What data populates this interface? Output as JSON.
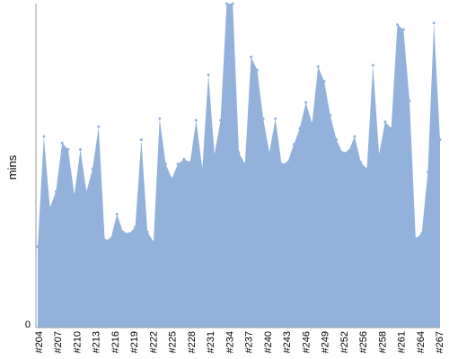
{
  "chart_data": {
    "type": "area",
    "title": "",
    "xlabel": "",
    "ylabel": "mins",
    "y_tick_labels": [
      "0"
    ],
    "ylim": [
      0,
      100
    ],
    "grid": false,
    "legend": "none",
    "series_color": "#92b2dc",
    "axis_color": "#999999",
    "x_tick_labels": [
      "#204",
      "#207",
      "#210",
      "#213",
      "#216",
      "#219",
      "#222",
      "#225",
      "#228",
      "#231",
      "#234",
      "#237",
      "#240",
      "#243",
      "#246",
      "#249",
      "#252",
      "#256",
      "#258",
      "#261",
      "#264",
      "#267"
    ],
    "values": [
      25,
      59,
      37,
      42,
      57,
      55,
      41,
      55,
      42,
      49,
      62,
      27,
      27.5,
      35,
      29.5,
      29,
      31,
      58,
      29.5,
      26.5,
      64.5,
      50.5,
      46,
      50.5,
      52,
      51,
      64,
      49,
      78,
      53.5,
      64,
      101,
      101,
      54,
      50.5,
      83.5,
      79.5,
      64.5,
      54,
      64.5,
      50.5,
      51,
      56.5,
      61.5,
      69.5,
      63,
      80.5,
      76,
      65.5,
      58,
      54,
      54.5,
      59,
      51,
      49,
      81,
      53.5,
      63.5,
      61.5,
      93.5,
      92,
      70,
      27.5,
      29,
      48,
      94,
      58
    ]
  }
}
